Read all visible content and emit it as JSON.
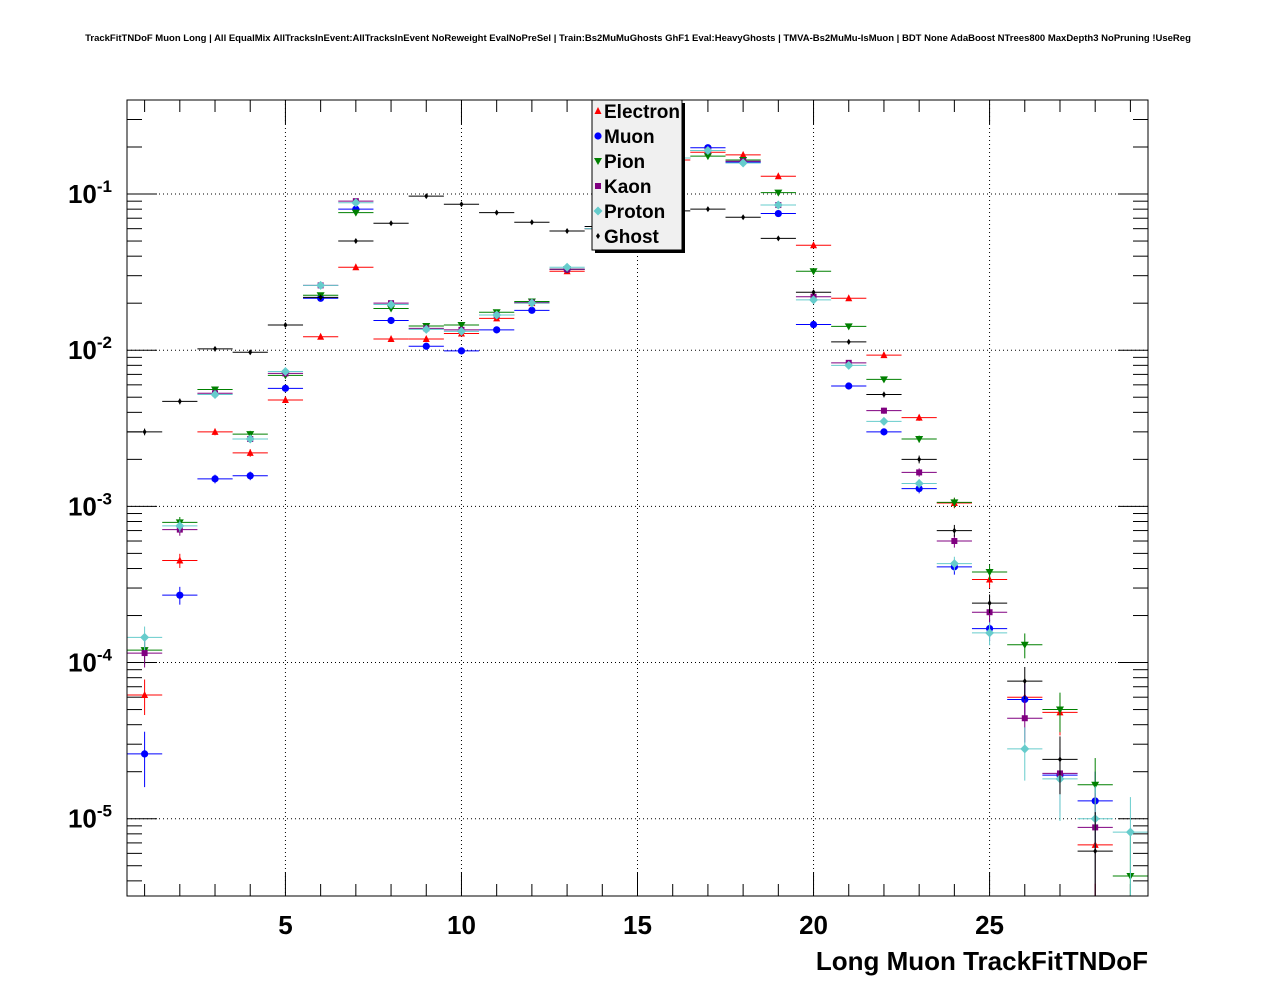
{
  "chart_data": {
    "type": "scatter",
    "title": "TrackFitTNDoF Muon Long | All EqualMix AllTracksInEvent:AllTracksInEvent NoReweight EvalNoPreSel | Train:Bs2MuMuGhosts GhF1 Eval:HeavyGhosts | TMVA-Bs2MuMu-IsMuon | BDT None AdaBoost NTrees800 MaxDepth3 NoPruning !UseReg",
    "xlabel": "Long Muon TrackFitTNDoF",
    "ylabel": "",
    "xlim": [
      0.5,
      29.5
    ],
    "ylim": [
      3.2e-06,
      0.4
    ],
    "y_scale": "log",
    "grid": true,
    "legend_position": "top-center",
    "x_ticks": [
      {
        "value": 5,
        "label": "5"
      },
      {
        "value": 10,
        "label": "10"
      },
      {
        "value": 15,
        "label": "15"
      },
      {
        "value": 20,
        "label": "20"
      },
      {
        "value": 25,
        "label": "25"
      }
    ],
    "y_ticks": [
      {
        "value": 0.1,
        "base": "10",
        "exp": "-1"
      },
      {
        "value": 0.01,
        "base": "10",
        "exp": "-2"
      },
      {
        "value": 0.001,
        "base": "10",
        "exp": "-3"
      },
      {
        "value": 0.0001,
        "base": "10",
        "exp": "-4"
      },
      {
        "value": 1e-05,
        "base": "10",
        "exp": "-5"
      }
    ],
    "series": [
      {
        "name": "Electron",
        "color": "#ff0000",
        "marker": "triangle-up",
        "points": [
          [
            1,
            6.2e-05
          ],
          [
            2,
            0.00045
          ],
          [
            3,
            0.003
          ],
          [
            4,
            0.0022
          ],
          [
            5,
            0.0048
          ],
          [
            6,
            0.0122
          ],
          [
            7,
            0.034
          ],
          [
            8,
            0.0118
          ],
          [
            9,
            0.0118
          ],
          [
            10,
            0.0128
          ],
          [
            11,
            0.016
          ],
          [
            12,
            0.02
          ],
          [
            13,
            0.032
          ],
          [
            14,
            0.06
          ],
          [
            15,
            0.11
          ],
          [
            16,
            0.165
          ],
          [
            17,
            0.185
          ],
          [
            18,
            0.178
          ],
          [
            19,
            0.13
          ],
          [
            20,
            0.047
          ],
          [
            21,
            0.0215
          ],
          [
            22,
            0.0093
          ],
          [
            23,
            0.0037
          ],
          [
            24,
            0.00105
          ],
          [
            25,
            0.00034
          ],
          [
            26,
            6e-05
          ],
          [
            27,
            4.8e-05
          ],
          [
            28,
            6.8e-06
          ]
        ]
      },
      {
        "name": "Muon",
        "color": "#0000ff",
        "marker": "circle",
        "points": [
          [
            1,
            2.6e-05
          ],
          [
            2,
            0.00027
          ],
          [
            3,
            0.0015
          ],
          [
            4,
            0.00157
          ],
          [
            5,
            0.0057
          ],
          [
            6,
            0.0215
          ],
          [
            7,
            0.08
          ],
          [
            8,
            0.0155
          ],
          [
            9,
            0.0106
          ],
          [
            10,
            0.0099
          ],
          [
            11,
            0.0135
          ],
          [
            12,
            0.018
          ],
          [
            13,
            0.033
          ],
          [
            14,
            0.062
          ],
          [
            15,
            0.115
          ],
          [
            16,
            0.17
          ],
          [
            17,
            0.198
          ],
          [
            18,
            0.16
          ],
          [
            19,
            0.075
          ],
          [
            20,
            0.0146
          ],
          [
            21,
            0.0059
          ],
          [
            22,
            0.003
          ],
          [
            23,
            0.0013
          ],
          [
            24,
            0.00041
          ],
          [
            25,
            0.000165
          ],
          [
            26,
            5.8e-05
          ],
          [
            27,
            1.9e-05
          ],
          [
            28,
            1.3e-05
          ]
        ]
      },
      {
        "name": "Pion",
        "color": "#008000",
        "marker": "triangle-down",
        "points": [
          [
            1,
            0.00012
          ],
          [
            2,
            0.00079
          ],
          [
            3,
            0.0056
          ],
          [
            4,
            0.0029
          ],
          [
            5,
            0.0069
          ],
          [
            6,
            0.0225
          ],
          [
            7,
            0.076
          ],
          [
            8,
            0.0185
          ],
          [
            9,
            0.0143
          ],
          [
            10,
            0.0145
          ],
          [
            11,
            0.0175
          ],
          [
            12,
            0.0205
          ],
          [
            13,
            0.033
          ],
          [
            14,
            0.06
          ],
          [
            15,
            0.115
          ],
          [
            16,
            0.17
          ],
          [
            17,
            0.175
          ],
          [
            18,
            0.165
          ],
          [
            19,
            0.102
          ],
          [
            20,
            0.032
          ],
          [
            21,
            0.0142
          ],
          [
            22,
            0.0065
          ],
          [
            23,
            0.0027
          ],
          [
            24,
            0.00106
          ],
          [
            25,
            0.00038
          ],
          [
            26,
            0.00013
          ],
          [
            27,
            5e-05
          ],
          [
            28,
            1.65e-05
          ],
          [
            29,
            4.3e-06
          ]
        ]
      },
      {
        "name": "Kaon",
        "color": "#800080",
        "marker": "square",
        "points": [
          [
            1,
            0.000115
          ],
          [
            2,
            0.00071
          ],
          [
            3,
            0.0053
          ],
          [
            4,
            0.0027
          ],
          [
            5,
            0.0071
          ],
          [
            6,
            0.026
          ],
          [
            7,
            0.09
          ],
          [
            8,
            0.02
          ],
          [
            9,
            0.0138
          ],
          [
            10,
            0.0135
          ],
          [
            11,
            0.0168
          ],
          [
            12,
            0.0202
          ],
          [
            13,
            0.033
          ],
          [
            14,
            0.06
          ],
          [
            15,
            0.115
          ],
          [
            16,
            0.17
          ],
          [
            17,
            0.19
          ],
          [
            18,
            0.162
          ],
          [
            19,
            0.085
          ],
          [
            20,
            0.022
          ],
          [
            21,
            0.0083
          ],
          [
            22,
            0.0041
          ],
          [
            23,
            0.00165
          ],
          [
            24,
            0.0006
          ],
          [
            25,
            0.00021
          ],
          [
            26,
            4.4e-05
          ],
          [
            27,
            1.95e-05
          ],
          [
            28,
            8.8e-06
          ]
        ]
      },
      {
        "name": "Proton",
        "color": "#66cccc",
        "marker": "diamond",
        "points": [
          [
            1,
            0.000145
          ],
          [
            2,
            0.00075
          ],
          [
            3,
            0.0052
          ],
          [
            4,
            0.0027
          ],
          [
            5,
            0.0073
          ],
          [
            6,
            0.026
          ],
          [
            7,
            0.088
          ],
          [
            8,
            0.0196
          ],
          [
            9,
            0.0136
          ],
          [
            10,
            0.0132
          ],
          [
            11,
            0.0168
          ],
          [
            12,
            0.02
          ],
          [
            13,
            0.034
          ],
          [
            14,
            0.06
          ],
          [
            15,
            0.115
          ],
          [
            16,
            0.17
          ],
          [
            17,
            0.19
          ],
          [
            18,
            0.158
          ],
          [
            19,
            0.085
          ],
          [
            20,
            0.021
          ],
          [
            21,
            0.008
          ],
          [
            22,
            0.0035
          ],
          [
            23,
            0.0014
          ],
          [
            24,
            0.00043
          ],
          [
            25,
            0.000155
          ],
          [
            26,
            2.8e-05
          ],
          [
            27,
            1.8e-05
          ],
          [
            28,
            1e-05
          ],
          [
            29,
            8.2e-06
          ]
        ]
      },
      {
        "name": "Ghost",
        "color": "#000000",
        "marker": "small-diamond",
        "points": [
          [
            1,
            0.003
          ],
          [
            2,
            0.0047
          ],
          [
            3,
            0.0102
          ],
          [
            4,
            0.0097
          ],
          [
            5,
            0.0145
          ],
          [
            6,
            0.0218
          ],
          [
            7,
            0.05
          ],
          [
            8,
            0.065
          ],
          [
            9,
            0.097
          ],
          [
            10,
            0.086
          ],
          [
            11,
            0.076
          ],
          [
            12,
            0.066
          ],
          [
            13,
            0.058
          ],
          [
            14,
            0.062
          ],
          [
            15,
            0.07
          ],
          [
            16,
            0.078
          ],
          [
            17,
            0.08
          ],
          [
            18,
            0.071
          ],
          [
            19,
            0.052
          ],
          [
            20,
            0.0235
          ],
          [
            21,
            0.0113
          ],
          [
            22,
            0.0052
          ],
          [
            23,
            0.002
          ],
          [
            24,
            0.0007
          ],
          [
            25,
            0.00024
          ],
          [
            26,
            7.6e-05
          ],
          [
            27,
            2.4e-05
          ],
          [
            28,
            6.2e-06
          ]
        ]
      }
    ]
  }
}
